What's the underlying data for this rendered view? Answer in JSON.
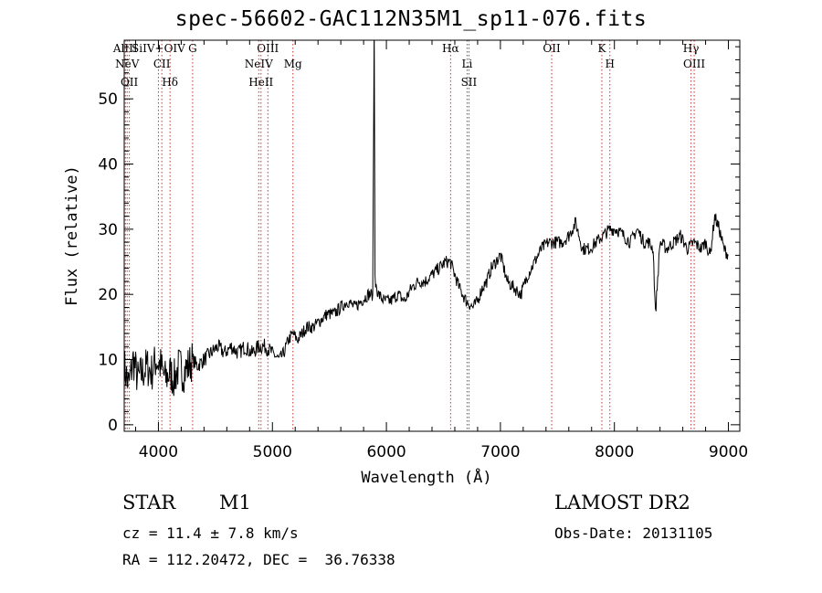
{
  "chart_data": {
    "type": "line",
    "title": "spec-56602-GAC112N35M1_sp11-076.fits",
    "xlabel": "Wavelength (Å)",
    "ylabel": "Flux (relative)",
    "xlim": [
      3700,
      9100
    ],
    "ylim": [
      -1,
      59
    ],
    "xticks": [
      4000,
      5000,
      6000,
      7000,
      8000,
      9000
    ],
    "yticks": [
      0,
      10,
      20,
      30,
      40,
      50
    ],
    "grid": false,
    "line_color": "#000000",
    "marker_color": "#cc3333",
    "series": [
      {
        "x": [
          3700,
          3740,
          3780,
          3820,
          3860,
          3900,
          3940,
          3980,
          4020,
          4060,
          4100,
          4140,
          4180,
          4220,
          4260,
          4300,
          4340,
          4400,
          4460,
          4520,
          4580,
          4640,
          4700,
          4760,
          4820,
          4880,
          4940,
          5000,
          5060,
          5100,
          5140,
          5180,
          5220,
          5260,
          5300,
          5360,
          5420,
          5480,
          5540,
          5600,
          5660,
          5720,
          5780,
          5840,
          5880,
          5893,
          5900,
          5930,
          5980,
          6040,
          6100,
          6160,
          6220,
          6280,
          6340,
          6400,
          6460,
          6520,
          6560,
          6600,
          6640,
          6700,
          6760,
          6800,
          6840,
          6880,
          6920,
          6960,
          7000,
          7060,
          7120,
          7180,
          7240,
          7300,
          7360,
          7420,
          7480,
          7540,
          7600,
          7660,
          7720,
          7780,
          7840,
          7900,
          7960,
          8020,
          8080,
          8140,
          8200,
          8260,
          8300,
          8340,
          8360,
          8400,
          8460,
          8520,
          8580,
          8640,
          8700,
          8760,
          8800,
          8840,
          8880,
          8920,
          8960,
          9000
        ],
        "y": [
          9,
          6,
          10,
          7,
          8,
          9,
          8,
          10,
          9,
          7,
          8,
          7,
          9,
          8,
          9,
          10,
          9,
          10,
          11,
          12,
          11,
          12,
          11,
          12,
          11,
          12,
          12,
          11,
          10,
          11,
          13,
          14,
          13,
          14,
          15,
          15,
          16,
          17,
          17,
          18,
          19,
          18,
          19,
          20,
          20,
          62,
          22,
          20,
          19,
          19,
          20,
          19,
          21,
          22,
          22,
          23,
          24,
          25,
          25,
          23,
          21,
          19,
          18,
          19,
          21,
          22,
          24,
          25,
          26,
          22,
          21,
          20,
          23,
          25,
          27,
          28,
          28,
          28,
          29,
          31,
          27,
          27,
          28,
          29,
          30,
          30,
          29,
          28,
          30,
          28,
          28,
          27,
          17,
          28,
          27,
          28,
          29,
          27,
          28,
          27,
          28,
          26,
          32,
          30,
          27,
          26
        ]
      }
    ],
    "lines": [
      {
        "label": "AlIII",
        "x": 3710
      },
      {
        "label": "NeV",
        "x": 3726
      },
      {
        "label": "OII",
        "x": 3745
      },
      {
        "label": "SiIV+OIV",
        "x": 4000
      },
      {
        "label": "CII",
        "x": 4030
      },
      {
        "label": "Hδ",
        "x": 4102
      },
      {
        "label": "G",
        "x": 4300
      },
      {
        "label": "OIII",
        "x": 4960
      },
      {
        "label": "NeIV",
        "x": 4880
      },
      {
        "label": "HeII",
        "x": 4900
      },
      {
        "label": "Mg",
        "x": 5180
      },
      {
        "label": "Hα",
        "x": 6563
      },
      {
        "label": "Li",
        "x": 6708
      },
      {
        "label": "SII",
        "x": 6724
      },
      {
        "label": "OII",
        "x": 7450
      },
      {
        "label": "K",
        "x": 7890
      },
      {
        "label": "H",
        "x": 7960
      },
      {
        "label": "Hγ",
        "x": 8672
      },
      {
        "label": "OIII",
        "x": 8700
      }
    ]
  },
  "info": {
    "object_class": "STAR",
    "subclass": "M1",
    "survey": "LAMOST DR2",
    "cz": "cz = 11.4 ± 7.8 km/s",
    "obs_date": "Obs-Date: 20131105",
    "radec": "RA = 112.20472, DEC =  36.76338"
  }
}
